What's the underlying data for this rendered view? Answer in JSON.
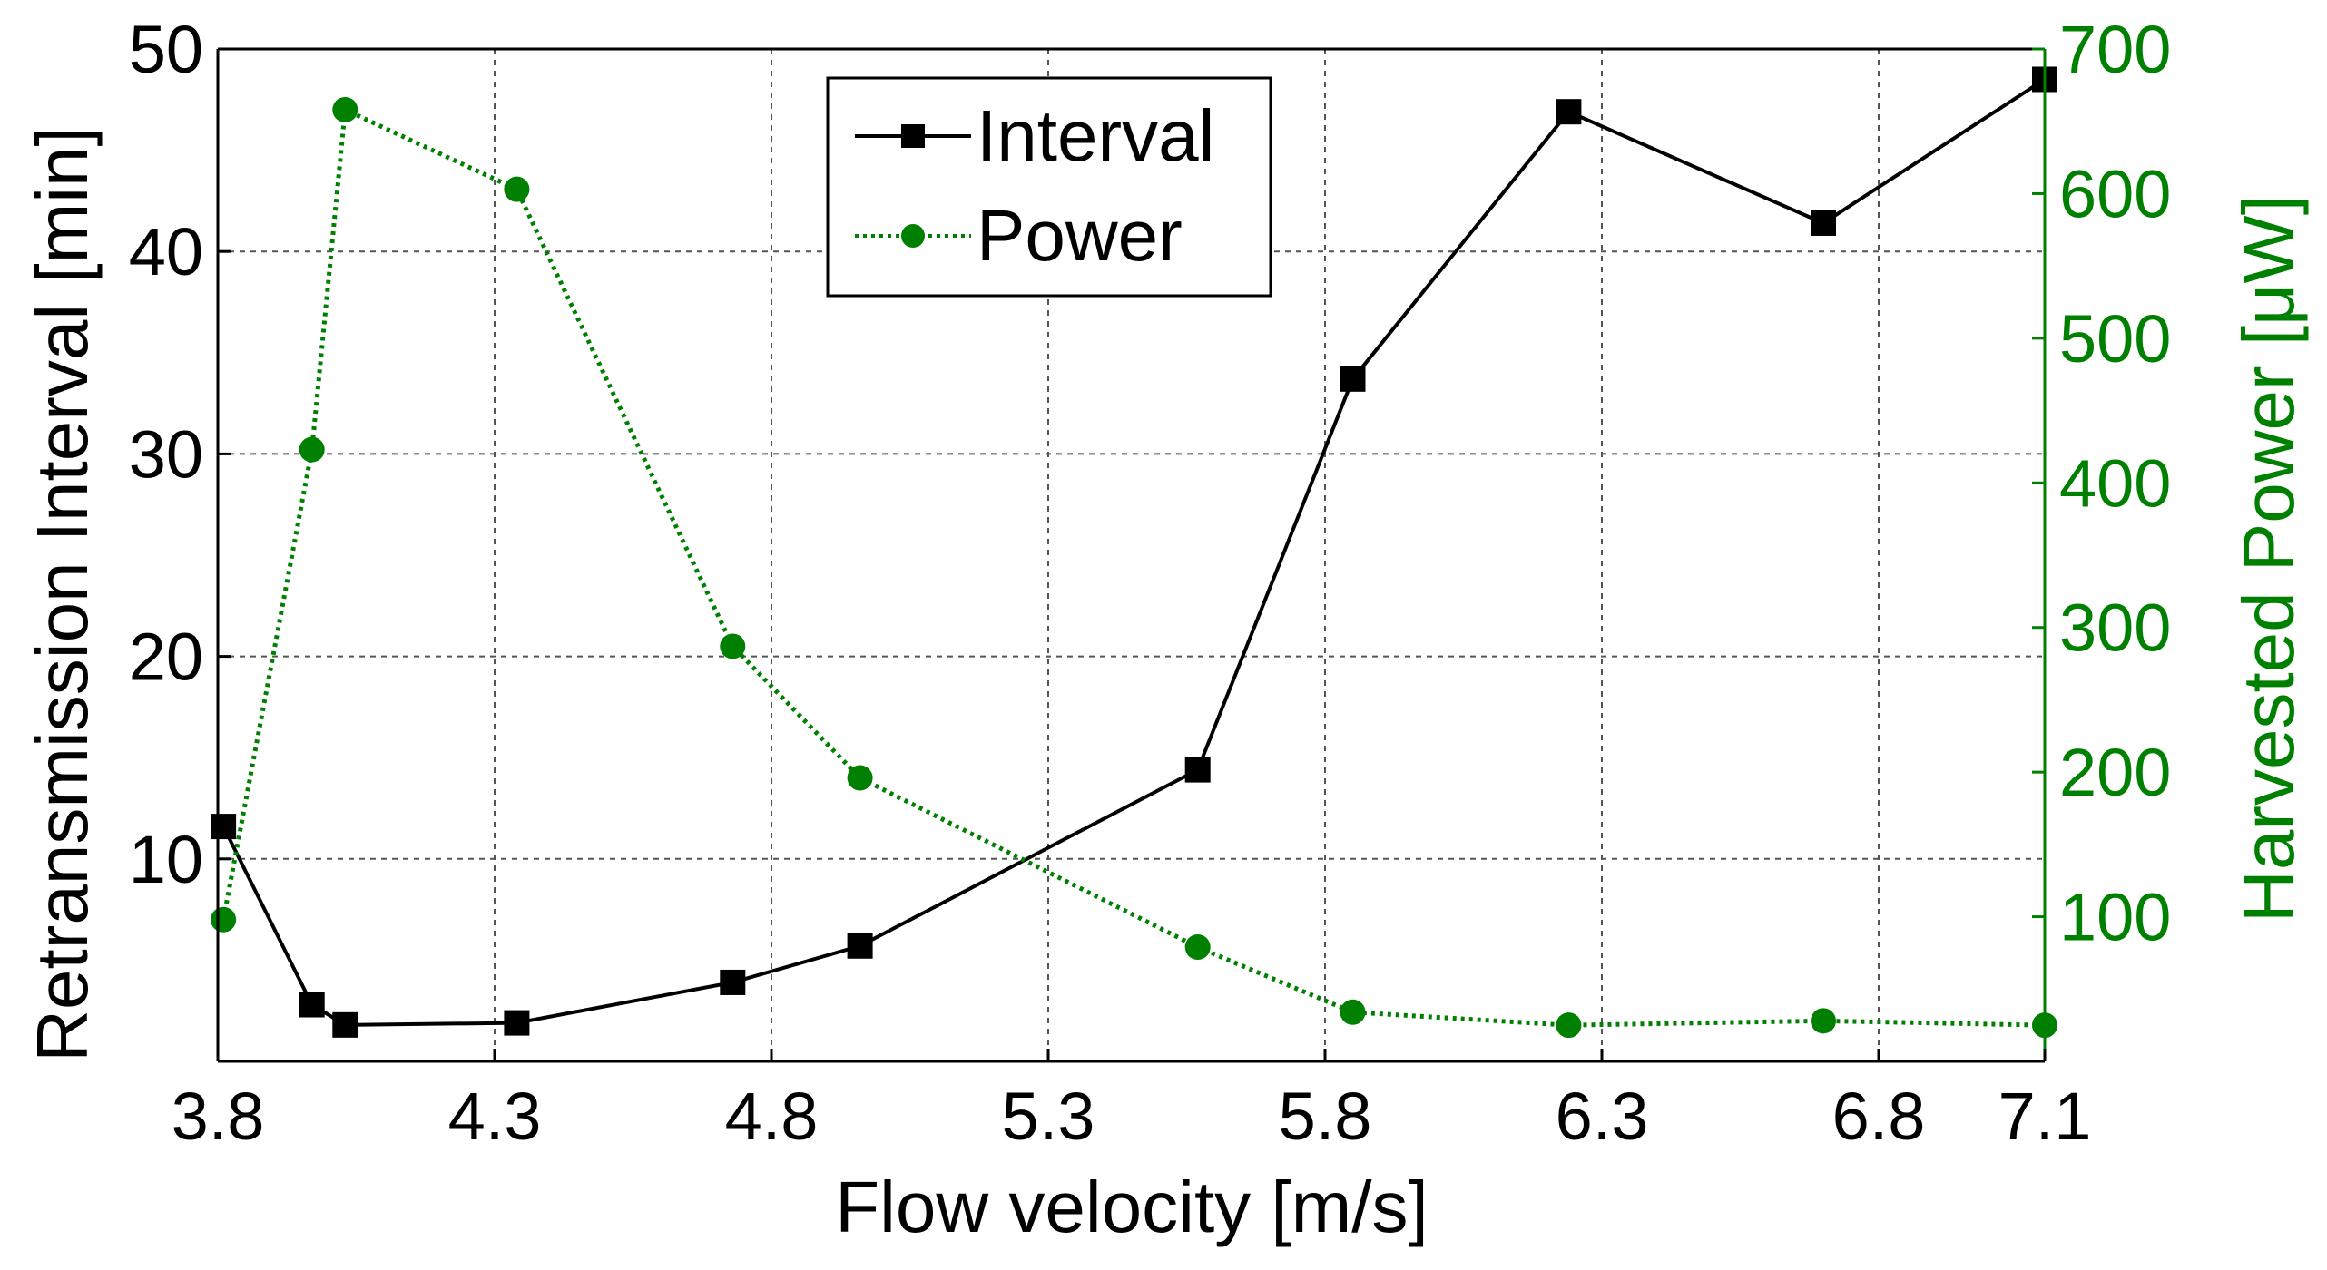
{
  "chart_data": {
    "type": "line",
    "title": "",
    "xlabel": "Flow velocity [m/s]",
    "ylabel_left": "Retransmission Interval [min]",
    "ylabel_right": "Harvested Power [μW]",
    "xlim": [
      3.8,
      7.1
    ],
    "ylim_left": [
      0,
      50
    ],
    "ylim_right": [
      0,
      700
    ],
    "x_ticks": [
      "3.8",
      "4.3",
      "4.8",
      "5.3",
      "5.8",
      "6.3",
      "6.8",
      "7.1"
    ],
    "x_tick_values": [
      3.8,
      4.3,
      4.8,
      5.3,
      5.8,
      6.3,
      6.8,
      7.1
    ],
    "y_left_ticks": [
      "10",
      "20",
      "30",
      "40",
      "50"
    ],
    "y_left_tick_values": [
      10,
      20,
      30,
      40,
      50
    ],
    "y_right_ticks": [
      "100",
      "200",
      "300",
      "400",
      "500",
      "600",
      "700"
    ],
    "y_right_tick_values": [
      100,
      200,
      300,
      400,
      500,
      600,
      700
    ],
    "grid": true,
    "legend_position": "top-center",
    "colors": {
      "interval": "#000000",
      "power": "#008000",
      "grid": "#555555",
      "axis": "#000000"
    },
    "series": [
      {
        "name": "Interval",
        "axis": "left",
        "marker": "square",
        "line": "solid",
        "x": [
          3.81,
          3.97,
          4.03,
          4.34,
          4.73,
          4.96,
          5.57,
          5.85,
          6.24,
          6.7,
          7.1
        ],
        "values": [
          11.6,
          2.8,
          1.8,
          1.9,
          3.9,
          5.7,
          14.4,
          33.7,
          46.9,
          41.4,
          48.5
        ]
      },
      {
        "name": "Power",
        "axis": "right",
        "marker": "circle",
        "line": "dotted",
        "x": [
          3.81,
          3.97,
          4.03,
          4.34,
          4.73,
          4.96,
          5.57,
          5.85,
          6.24,
          6.7,
          7.1
        ],
        "values": [
          98,
          423,
          658,
          603,
          287,
          196,
          79,
          34,
          25,
          28,
          25
        ]
      }
    ]
  }
}
